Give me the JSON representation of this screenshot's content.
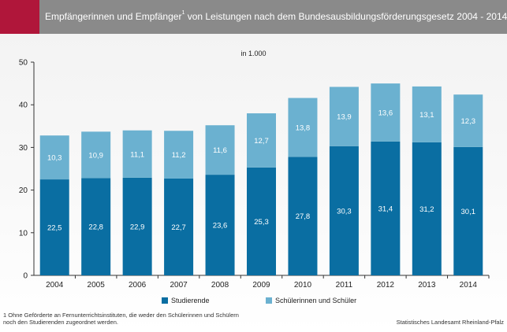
{
  "header": {
    "title_main": "Empfängerinnen und Empfänger",
    "title_sup": "1",
    "title_rest": " von Leistungen nach dem Bundesausbildungsförderungsgesetz 2004 - 2014",
    "accent_color": "#b0163a",
    "band_color": "#8a8a8a"
  },
  "chart_data": {
    "type": "bar",
    "stacked": true,
    "subtitle": "in 1.000",
    "categories": [
      "2004",
      "2005",
      "2006",
      "2007",
      "2008",
      "2009",
      "2010",
      "2011",
      "2012",
      "2013",
      "2014"
    ],
    "series": [
      {
        "name": "Studierende",
        "color": "#0a6ea2",
        "values": [
          22.5,
          22.8,
          22.9,
          22.7,
          23.6,
          25.3,
          27.8,
          30.3,
          31.4,
          31.2,
          30.1
        ],
        "labels": [
          "22,5",
          "22,8",
          "22,9",
          "22,7",
          "23,6",
          "25,3",
          "27,8",
          "30,3",
          "31,4",
          "31,2",
          "30,1"
        ]
      },
      {
        "name": "Schülerinnen und Schüler",
        "color": "#6bb1d0",
        "values": [
          10.3,
          10.9,
          11.1,
          11.2,
          11.6,
          12.7,
          13.8,
          13.9,
          13.6,
          13.1,
          12.3
        ],
        "labels": [
          "10,3",
          "10,9",
          "11,1",
          "11,2",
          "11,6",
          "12,7",
          "13,8",
          "13,9",
          "13,6",
          "13,1",
          "12,3"
        ]
      }
    ],
    "ylim": [
      0,
      50
    ],
    "yticks": [
      "0",
      "10",
      "20",
      "30",
      "40",
      "50"
    ],
    "ytick_values": [
      0,
      10,
      20,
      30,
      40,
      50
    ],
    "grid": false,
    "legend_position": "bottom"
  },
  "footnote": {
    "line1": "1 Ohne Geförderte an Fernunterrichtsinstituten, die weder den Schülerinnen und Schülern",
    "line2": "noch den Studierenden zugeordnet werden."
  },
  "source": "Statistisches Landesamt Rheinland-Pfalz"
}
